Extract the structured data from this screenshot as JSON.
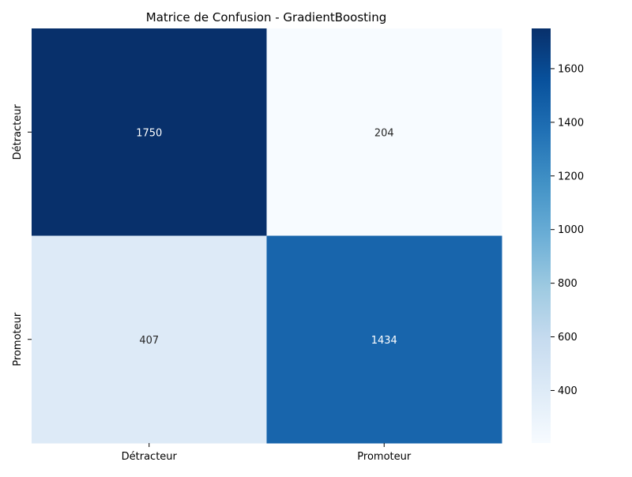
{
  "chart_data": {
    "type": "heatmap",
    "title": "Matrice de Confusion - GradientBoosting",
    "xlabel": "",
    "ylabel": "",
    "x_categories": [
      "Détracteur",
      "Promoteur"
    ],
    "y_categories": [
      "Détracteur",
      "Promoteur"
    ],
    "values": [
      [
        1750,
        204
      ],
      [
        407,
        1434
      ]
    ],
    "annotations": [
      [
        "1750",
        "204"
      ],
      [
        "407",
        "1434"
      ]
    ],
    "colormap": "Blues",
    "colorbar": {
      "range": [
        204,
        1750
      ],
      "ticks": [
        400,
        600,
        800,
        1000,
        1200,
        1400,
        1600
      ],
      "tick_labels": [
        "400",
        "600",
        "800",
        "1000",
        "1200",
        "1400",
        "1600"
      ]
    },
    "colors": {
      "low": "#f7fbff",
      "high": "#08306b",
      "text_dark": "#262626",
      "text_light": "#ffffff"
    }
  }
}
